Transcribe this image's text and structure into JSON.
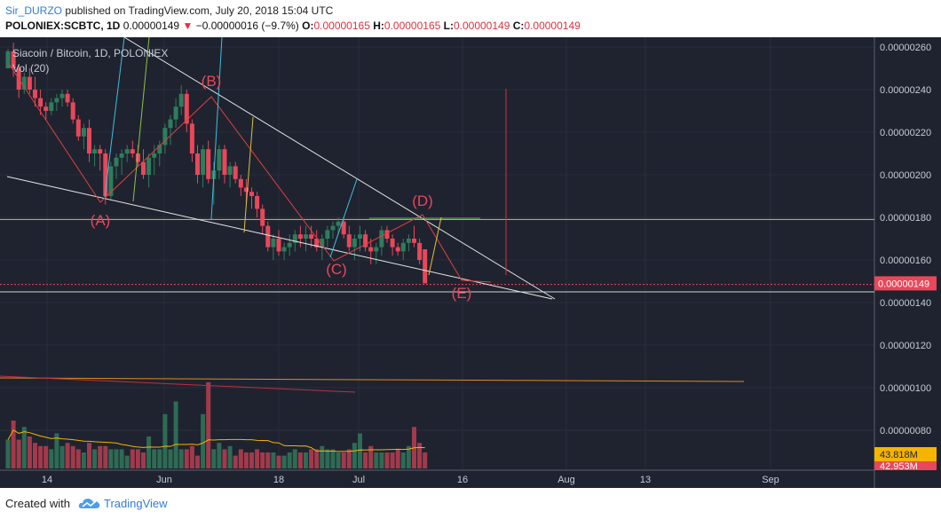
{
  "header": {
    "user": "Sir_DURZO",
    "published": " published on TradingView.com, July 20, 2018 15:04 UTC",
    "symbol": "POLONIEX:SCBTC, 1D",
    "last": "0.00000149",
    "arrow": "▼",
    "change": "−0.00000016 (−9.7%)",
    "o_label": "O:",
    "o_value": "0.00000165",
    "h_label": "H:",
    "h_value": "0.00000165",
    "l_label": "L:",
    "l_value": "0.00000149",
    "c_label": "C:",
    "c_value": "0.00000149"
  },
  "legend": {
    "title": "Siacoin / Bitcoin, 1D, POLONIEX",
    "indicator": "Vol (20)"
  },
  "footer": {
    "created": "Created with",
    "brand": "TradingView"
  },
  "colors": {
    "up": "#2e7d5c",
    "down": "#e9475a",
    "background": "#1f2330",
    "price_label": "#e9475a",
    "volume_label": "#f4b400"
  },
  "chart_data": {
    "type": "candlestick",
    "title": "Siacoin / Bitcoin, 1D, POLONIEX",
    "x_ticks": [
      "14",
      "Jun",
      "18",
      "Jul",
      "16",
      "Aug",
      "13",
      "Sep"
    ],
    "y_ticks": [
      "0.00000260",
      "0.00000240",
      "0.00000220",
      "0.00000200",
      "0.00000180",
      "0.00000160",
      "0.00000140",
      "0.00000120",
      "0.00000100",
      "0.00000080"
    ],
    "ylim": [
      7.3e-07,
      2.66e-06
    ],
    "last_price_label": "0.00000149",
    "volume_labels": [
      "43.818M",
      "42.953M"
    ],
    "candles_approx": [
      [
        250,
        259,
        250,
        258
      ],
      [
        258,
        262,
        246,
        250
      ],
      [
        250,
        252,
        236,
        240
      ],
      [
        240,
        248,
        238,
        246
      ],
      [
        246,
        250,
        238,
        240
      ],
      [
        240,
        246,
        232,
        236
      ],
      [
        236,
        240,
        228,
        232
      ],
      [
        232,
        234,
        226,
        230
      ],
      [
        230,
        236,
        228,
        234
      ],
      [
        234,
        238,
        230,
        236
      ],
      [
        236,
        240,
        232,
        238
      ],
      [
        238,
        240,
        232,
        234
      ],
      [
        234,
        236,
        224,
        226
      ],
      [
        226,
        228,
        216,
        218
      ],
      [
        218,
        224,
        212,
        222
      ],
      [
        222,
        226,
        206,
        210
      ],
      [
        210,
        214,
        204,
        212
      ],
      [
        212,
        214,
        202,
        210
      ],
      [
        210,
        212,
        186,
        190
      ],
      [
        190,
        206,
        188,
        204
      ],
      [
        204,
        210,
        198,
        208
      ],
      [
        208,
        212,
        200,
        210
      ],
      [
        210,
        214,
        206,
        212
      ],
      [
        212,
        216,
        208,
        210
      ],
      [
        210,
        214,
        204,
        206
      ],
      [
        206,
        212,
        198,
        200
      ],
      [
        200,
        210,
        194,
        208
      ],
      [
        208,
        214,
        200,
        210
      ],
      [
        210,
        216,
        204,
        214
      ],
      [
        214,
        224,
        210,
        222
      ],
      [
        222,
        228,
        214,
        226
      ],
      [
        226,
        236,
        222,
        232
      ],
      [
        232,
        242,
        228,
        238
      ],
      [
        238,
        240,
        220,
        224
      ],
      [
        224,
        226,
        206,
        210
      ],
      [
        210,
        214,
        196,
        200
      ],
      [
        200,
        214,
        194,
        212
      ],
      [
        212,
        216,
        196,
        198
      ],
      [
        198,
        206,
        186,
        202
      ],
      [
        202,
        214,
        198,
        212
      ],
      [
        212,
        214,
        196,
        200
      ],
      [
        200,
        206,
        194,
        204
      ],
      [
        204,
        206,
        196,
        198
      ],
      [
        198,
        200,
        190,
        194
      ],
      [
        194,
        198,
        186,
        192
      ],
      [
        192,
        194,
        184,
        190
      ],
      [
        190,
        192,
        180,
        184
      ],
      [
        184,
        186,
        172,
        176
      ],
      [
        176,
        178,
        164,
        166
      ],
      [
        166,
        172,
        160,
        170
      ],
      [
        170,
        174,
        162,
        164
      ],
      [
        164,
        168,
        160,
        166
      ],
      [
        166,
        172,
        162,
        168
      ],
      [
        168,
        174,
        164,
        172
      ],
      [
        172,
        176,
        166,
        170
      ],
      [
        170,
        176,
        164,
        172
      ],
      [
        172,
        176,
        166,
        170
      ],
      [
        170,
        174,
        164,
        166
      ],
      [
        166,
        172,
        160,
        170
      ],
      [
        170,
        176,
        166,
        174
      ],
      [
        174,
        178,
        170,
        176
      ],
      [
        176,
        180,
        172,
        178
      ],
      [
        178,
        180,
        170,
        172
      ],
      [
        172,
        176,
        164,
        166
      ],
      [
        166,
        172,
        160,
        170
      ],
      [
        170,
        176,
        164,
        172
      ],
      [
        172,
        174,
        164,
        166
      ],
      [
        166,
        170,
        158,
        164
      ],
      [
        164,
        168,
        158,
        166
      ],
      [
        166,
        176,
        162,
        174
      ],
      [
        174,
        176,
        168,
        170
      ],
      [
        170,
        172,
        162,
        166
      ],
      [
        166,
        168,
        162,
        164
      ],
      [
        164,
        170,
        160,
        168
      ],
      [
        168,
        172,
        164,
        170
      ],
      [
        170,
        176,
        166,
        168
      ],
      [
        168,
        170,
        158,
        160
      ],
      [
        165,
        165,
        149,
        149
      ]
    ],
    "volumes_approx": [
      9,
      15,
      9,
      13,
      10,
      8,
      7,
      7,
      6,
      11,
      7,
      8,
      7,
      6,
      5,
      8,
      6,
      7,
      7,
      6,
      6,
      6,
      4,
      6,
      6,
      5,
      10,
      6,
      6,
      17,
      6,
      21,
      6,
      6,
      7,
      4,
      17,
      27,
      6,
      8,
      6,
      7,
      4,
      6,
      5,
      5,
      6,
      5,
      5,
      5,
      4,
      4,
      5,
      6,
      5,
      5,
      6,
      6,
      7,
      6,
      6,
      5,
      5,
      6,
      8,
      11,
      5,
      7,
      5,
      5,
      5,
      5,
      6,
      5,
      7,
      13,
      8,
      5
    ],
    "annotations": [
      "(A)",
      "(B)",
      "(C)",
      "(D)",
      "(E)"
    ],
    "legend_placement": "top-left"
  }
}
